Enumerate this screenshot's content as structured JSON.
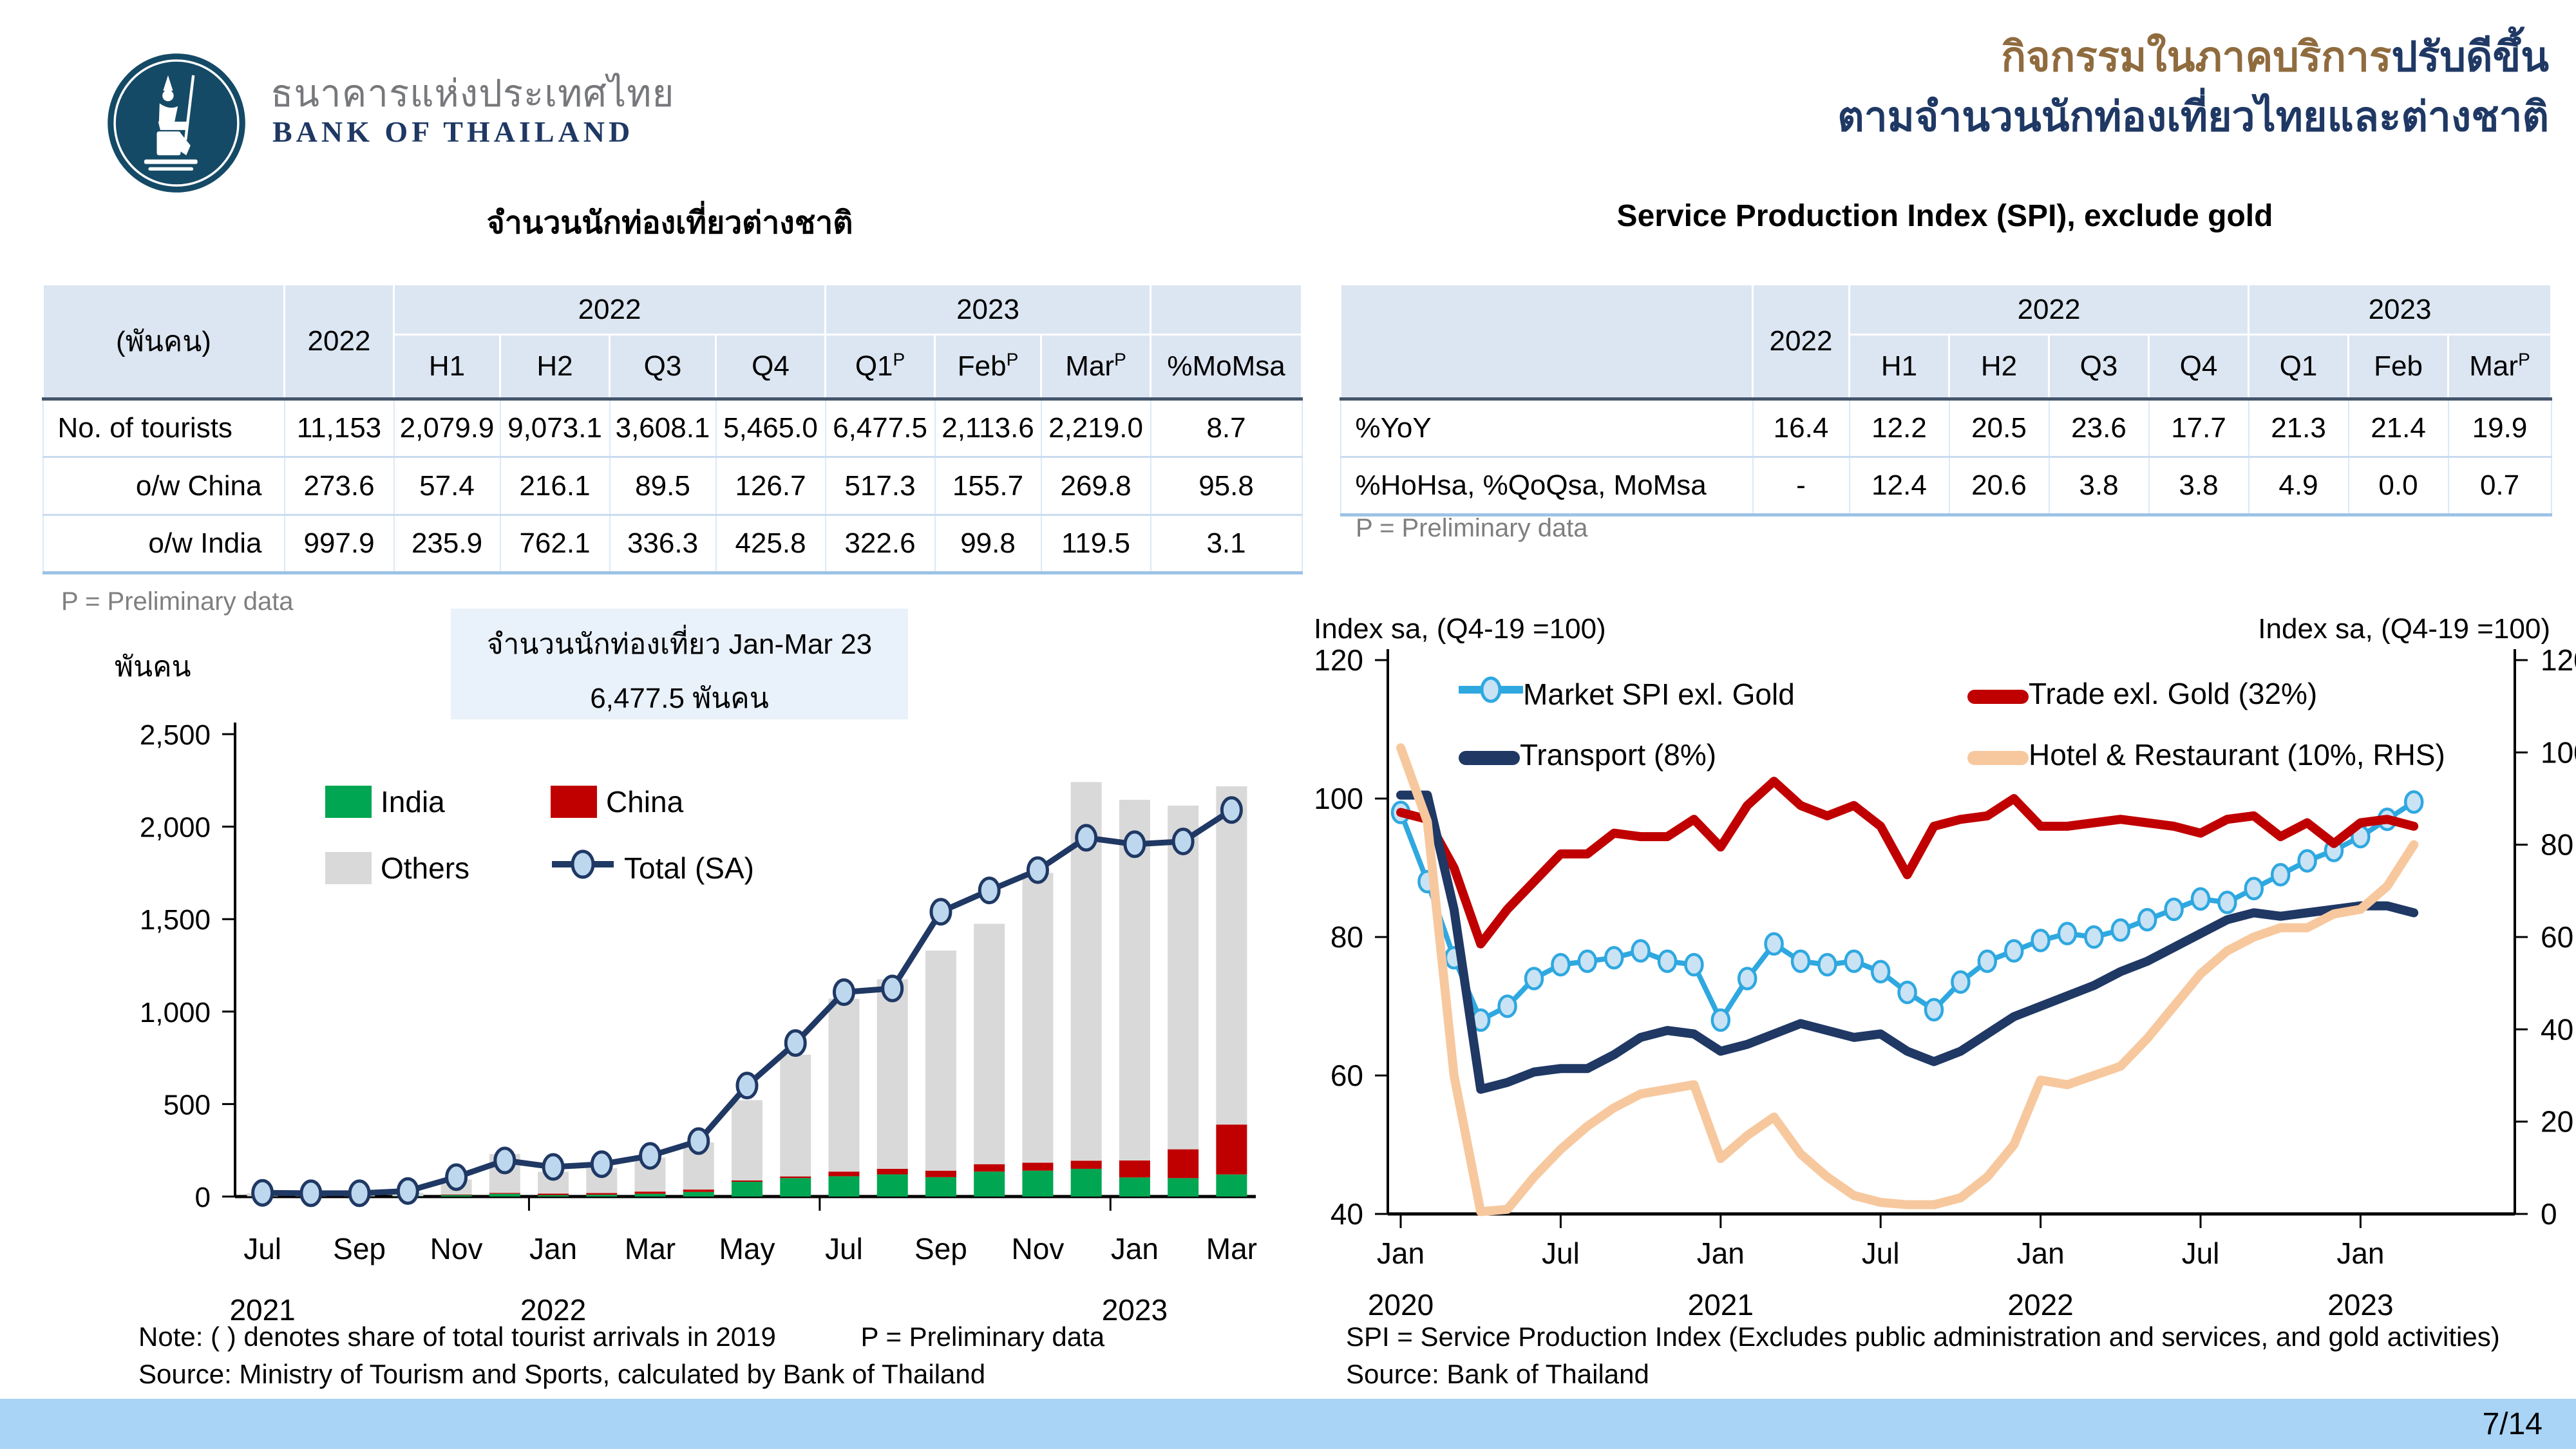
{
  "colors": {
    "navy": "#1F3864",
    "brown": "#8F6B3E",
    "logo_circle": "#154A66",
    "india_green": "#00A651",
    "china_red": "#C00000",
    "others_gray": "#D9D9D9",
    "total_line": "#1F3864",
    "marker_fill": "#BDD7EE",
    "market_blue": "#2FA8E0",
    "hotel_peach": "#F7C89E",
    "footer_bar": "#A9D4F6",
    "table_header_bg": "#DCE6F2"
  },
  "header": {
    "logo": {
      "thai": "ธนาคารแห่งประเทศไทย",
      "eng": "BANK OF THAILAND"
    },
    "title": {
      "line1_brown": "กิจกรรมในภาคบริการ",
      "line1_blue": "ปรับดีขึ้น",
      "line2": "ตามจำนวนนักท่องเที่ยวไทยและต่างชาติ"
    }
  },
  "left": {
    "section_title": "จำนวนนักท่องเที่ยวต่างชาติ",
    "table": {
      "unit_header": "(พันคน)",
      "annual_header": "2022",
      "groups": [
        {
          "label": "2022",
          "cols": [
            {
              "label": "H1"
            },
            {
              "label": "H2"
            },
            {
              "label": "Q3"
            },
            {
              "label": "Q4"
            }
          ]
        },
        {
          "label": "2023",
          "cols": [
            {
              "label": "Q1",
              "sup": "P"
            },
            {
              "label": "Feb",
              "sup": "P"
            },
            {
              "label": "Mar",
              "sup": "P"
            }
          ]
        }
      ],
      "extra_col": {
        "label": "%MoMsa"
      },
      "rows": [
        {
          "label": "No. of tourists",
          "values": [
            "11,153",
            "2,079.9",
            "9,073.1",
            "3,608.1",
            "5,465.0",
            "6,477.5",
            "2,113.6",
            "2,219.0",
            "8.7"
          ]
        },
        {
          "label": "o/w China",
          "values": [
            "273.6",
            "57.4",
            "216.1",
            "89.5",
            "126.7",
            "517.3",
            "155.7",
            "269.8",
            "95.8"
          ]
        },
        {
          "label": "o/w India",
          "values": [
            "997.9",
            "235.9",
            "762.1",
            "336.3",
            "425.8",
            "322.6",
            "99.8",
            "119.5",
            "3.1"
          ]
        }
      ]
    },
    "footnote": "P = Preliminary data",
    "axis_unit": "พันคน",
    "annotation": {
      "line1": "จำนวนนักท่องเที่ยว Jan-Mar 23",
      "line2": "6,477.5 พันคน"
    },
    "note_line1": "Note: ( ) denotes share of total tourist arrivals in 2019",
    "note_p": "P = Preliminary data",
    "source": "Source: Ministry of Tourism and Sports, calculated by Bank of Thailand"
  },
  "right": {
    "section_title": "Service Production Index (SPI), exclude gold",
    "table": {
      "unit_header": "",
      "annual_header": "2022",
      "groups": [
        {
          "label": "2022",
          "cols": [
            {
              "label": "H1"
            },
            {
              "label": "H2"
            },
            {
              "label": "Q3"
            },
            {
              "label": "Q4"
            }
          ]
        },
        {
          "label": "2023",
          "cols": [
            {
              "label": "Q1"
            },
            {
              "label": "Feb"
            },
            {
              "label": "Mar",
              "sup": "P"
            }
          ]
        }
      ],
      "rows": [
        {
          "label": "%YoY",
          "values": [
            "16.4",
            "12.2",
            "20.5",
            "23.6",
            "17.7",
            "21.3",
            "21.4",
            "19.9"
          ]
        },
        {
          "label": "%HoHsa, %QoQsa, MoMsa",
          "values": [
            "-",
            "12.4",
            "20.6",
            "3.8",
            "3.8",
            "4.9",
            "0.0",
            "0.7"
          ]
        }
      ]
    },
    "footnote": "P = Preliminary data",
    "axis_left_label": "Index sa, (Q4-19 =100)",
    "axis_right_label": "Index sa, (Q4-19 =100)",
    "note_line1": "SPI = Service Production Index (Excludes public administration and services, and gold activities)",
    "source": "Source: Bank of Thailand"
  },
  "footer": {
    "page": "7/14"
  },
  "chart_data": [
    {
      "type": "stacked-bar+line",
      "title": "จำนวนนักท่องเที่ยวต่างชาติ",
      "ylabel": "พันคน",
      "ylim": [
        0,
        2500
      ],
      "yticks": [
        0,
        500,
        1000,
        1500,
        2000,
        2500
      ],
      "x": [
        "Jul-21",
        "Aug-21",
        "Sep-21",
        "Oct-21",
        "Nov-21",
        "Dec-21",
        "Jan-22",
        "Feb-22",
        "Mar-22",
        "Apr-22",
        "May-22",
        "Jun-22",
        "Jul-22",
        "Aug-22",
        "Sep-22",
        "Oct-22",
        "Nov-22",
        "Dec-22",
        "Jan-23",
        "Feb-23",
        "Mar-23"
      ],
      "x_tick_every": 2,
      "x_tick_labels": [
        "Jul",
        "Sep",
        "Nov",
        "Jan",
        "Mar",
        "May",
        "Jul",
        "Sep",
        "Nov",
        "Jan",
        "Mar"
      ],
      "year_labels": [
        {
          "text": "2021",
          "at": 0
        },
        {
          "text": "2022",
          "at": 6
        },
        {
          "text": "2023",
          "at": 18
        }
      ],
      "series": [
        {
          "name": "India",
          "type": "bar",
          "color": "#00A651",
          "values": [
            1,
            1,
            1,
            2,
            8,
            15,
            8,
            10,
            15,
            25,
            80,
            100,
            110,
            120,
            105,
            135,
            140,
            150,
            103.3,
            99.8,
            119.5
          ]
        },
        {
          "name": "China",
          "type": "bar",
          "color": "#C00000",
          "values": [
            0.5,
            0.5,
            0.5,
            1,
            3,
            5,
            8,
            9,
            12,
            13,
            7,
            9,
            25,
            30,
            35,
            40,
            43,
            44,
            91.8,
            155.7,
            269.8
          ]
        },
        {
          "name": "Others",
          "type": "bar",
          "color": "#D9D9D9",
          "values": [
            16.5,
            13.5,
            11.5,
            18,
            81,
            210,
            118,
            134,
            184,
            255,
            434,
            658,
            935,
            1025,
            1190,
            1300,
            1567,
            2047,
            1950,
            1858.5,
            1828.7
          ]
        },
        {
          "name": "Total (SA)",
          "type": "line",
          "color": "#1F3864",
          "marker_fill": "#BDD7EE",
          "values": [
            20,
            18,
            18,
            30,
            105,
            195,
            160,
            175,
            220,
            300,
            600,
            830,
            1105,
            1125,
            1540,
            1655,
            1765,
            1940,
            1905,
            1920,
            2090
          ]
        }
      ],
      "annotation": "จำนวนนักท่องเที่ยว Jan-Mar 23 | 6,477.5 พันคน",
      "legend_position": "upper-left-inside",
      "grid": false
    },
    {
      "type": "line",
      "title": "Service Production Index (SPI), exclude gold",
      "axis_label_left": "Index sa, (Q4-19 =100)",
      "axis_label_right": "Index sa, (Q4-19 =100)",
      "ylim_left": [
        40,
        120
      ],
      "yticks_left": [
        40,
        60,
        80,
        100,
        120
      ],
      "ylim_right": [
        0,
        120
      ],
      "yticks_right": [
        0,
        20,
        40,
        60,
        80,
        100,
        120
      ],
      "x_start": "Jan-2020",
      "x_end": "Mar-2023",
      "freq": "monthly",
      "x_tick_indices": [
        0,
        6,
        12,
        18,
        24,
        30,
        36
      ],
      "x_tick_labels": [
        "Jan",
        "Jul",
        "Jan",
        "Jul",
        "Jan",
        "Jul",
        "Jan"
      ],
      "year_labels": [
        {
          "text": "2020",
          "at": 0
        },
        {
          "text": "2021",
          "at": 12
        },
        {
          "text": "2022",
          "at": 24
        },
        {
          "text": "2023",
          "at": 36
        }
      ],
      "series": [
        {
          "name": "Market SPI exl. Gold",
          "axis": "left",
          "color": "#2FA8E0",
          "marker": true,
          "values": [
            98,
            88,
            77,
            68,
            70,
            74,
            76,
            76.5,
            77,
            78,
            76.5,
            76,
            68,
            74,
            79,
            76.5,
            76,
            76.5,
            75,
            72,
            69.5,
            73.5,
            76.5,
            78,
            79.5,
            80.5,
            80,
            81,
            82.5,
            84,
            85.5,
            85,
            87,
            89,
            91,
            92.5,
            94.5,
            97,
            99.5
          ]
        },
        {
          "name": "Trade exl. Gold (32%)",
          "axis": "left",
          "color": "#C00000",
          "marker": false,
          "values": [
            98,
            97,
            90,
            79,
            84,
            88,
            92,
            92,
            95,
            94.5,
            94.5,
            97,
            93,
            99,
            102.5,
            99,
            97.5,
            99,
            96,
            89,
            96,
            97,
            97.5,
            100,
            96,
            96,
            96.5,
            97,
            96.5,
            96,
            95,
            97,
            97.5,
            94.5,
            96.5,
            93.5,
            96.5,
            97,
            96
          ]
        },
        {
          "name": "Transport (8%)",
          "axis": "left",
          "color": "#1F3864",
          "marker": false,
          "values": [
            100.5,
            100.5,
            84,
            58,
            59,
            60.5,
            61,
            61,
            63,
            65.5,
            66.5,
            66,
            63.5,
            64.5,
            66,
            67.5,
            66.5,
            65.5,
            66,
            63.5,
            62,
            63.5,
            66,
            68.5,
            70,
            71.5,
            73,
            75,
            76.5,
            78.5,
            80.5,
            82.5,
            83.5,
            83,
            83.5,
            84,
            84.5,
            84.5,
            83.5
          ]
        },
        {
          "name": "Hotel & Restaurant (10%, RHS)",
          "axis": "right",
          "color": "#F7C89E",
          "marker": false,
          "values": [
            101,
            85,
            30,
            0.5,
            1,
            8,
            14,
            19,
            23,
            26,
            27,
            28,
            12,
            17,
            21,
            13,
            8,
            4,
            2.5,
            2,
            2,
            3.5,
            8,
            15,
            29,
            28,
            30,
            32,
            38,
            45,
            52,
            57,
            60,
            62,
            62,
            65,
            66,
            71,
            80
          ]
        }
      ],
      "legend_position": "upper-left-inside",
      "grid": false
    }
  ]
}
